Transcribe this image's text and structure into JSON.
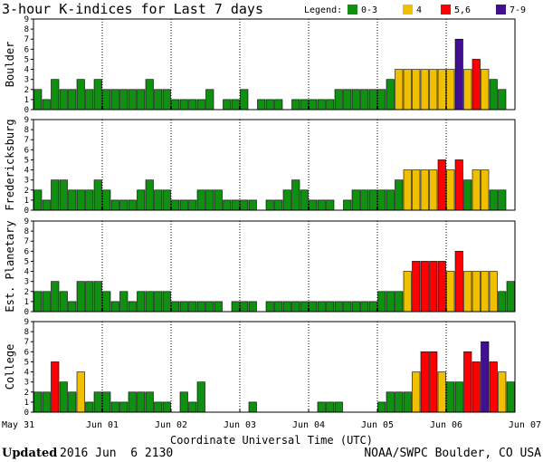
{
  "title": "3-hour K-indices for Last 7 days",
  "legend": {
    "label": "Legend:",
    "items": [
      {
        "label": "0-3",
        "color": "#109010"
      },
      {
        "label": "4",
        "color": "#f0c000"
      },
      {
        "label": "5,6",
        "color": "#ff0000"
      },
      {
        "label": "7-9",
        "color": "#401090"
      }
    ]
  },
  "footer": {
    "updated_label": "Updated",
    "updated_value": "2016 Jun  6 2130",
    "credit": "NOAA/SWPC Boulder, CO USA"
  },
  "chart_data": {
    "type": "bar",
    "xlabel": "Coordinate Universal Time (UTC)",
    "x_ticks": [
      "May 31",
      "Jun 01",
      "Jun 02",
      "Jun 03",
      "Jun 04",
      "Jun 05",
      "Jun 06",
      "Jun 07"
    ],
    "ylim": [
      0,
      9
    ],
    "y_ticks": [
      0,
      1,
      2,
      3,
      4,
      5,
      6,
      7,
      8,
      9
    ],
    "interval_hours": 3,
    "color_scale": [
      {
        "range": "0-3",
        "color": "#109010"
      },
      {
        "range": "4",
        "color": "#f0c000"
      },
      {
        "range": "5,6",
        "color": "#ff0000"
      },
      {
        "range": "7-9",
        "color": "#401090"
      }
    ],
    "series": [
      {
        "name": "Boulder",
        "values": [
          2,
          1,
          3,
          2,
          2,
          3,
          2,
          3,
          2,
          2,
          2,
          2,
          2,
          3,
          2,
          2,
          1,
          1,
          1,
          1,
          2,
          0,
          1,
          1,
          2,
          0,
          1,
          1,
          1,
          0,
          1,
          1,
          1,
          1,
          1,
          2,
          2,
          2,
          2,
          2,
          2,
          3,
          4,
          4,
          4,
          4,
          4,
          4,
          4,
          7,
          4,
          5,
          4,
          3,
          2,
          0
        ]
      },
      {
        "name": "Fredericksburg",
        "values": [
          2,
          1,
          3,
          3,
          2,
          2,
          2,
          3,
          2,
          1,
          1,
          1,
          2,
          3,
          2,
          2,
          1,
          1,
          1,
          2,
          2,
          2,
          1,
          1,
          1,
          1,
          0,
          1,
          1,
          2,
          3,
          2,
          1,
          1,
          1,
          0,
          1,
          2,
          2,
          2,
          2,
          2,
          3,
          4,
          4,
          4,
          4,
          5,
          4,
          5,
          3,
          4,
          4,
          2,
          2,
          0
        ]
      },
      {
        "name": "Est. Planetary",
        "values": [
          2,
          2,
          3,
          2,
          1,
          3,
          3,
          3,
          2,
          1,
          2,
          1,
          2,
          2,
          2,
          2,
          1,
          1,
          1,
          1,
          1,
          1,
          0,
          1,
          1,
          1,
          0,
          1,
          1,
          1,
          1,
          1,
          1,
          1,
          1,
          1,
          1,
          1,
          1,
          1,
          2,
          2,
          2,
          4,
          5,
          5,
          5,
          5,
          4,
          6,
          4,
          4,
          4,
          4,
          2,
          3
        ]
      },
      {
        "name": "College",
        "values": [
          2,
          2,
          5,
          3,
          2,
          4,
          1,
          2,
          2,
          1,
          1,
          2,
          2,
          2,
          1,
          1,
          0,
          2,
          1,
          3,
          0,
          0,
          0,
          0,
          0,
          1,
          0,
          0,
          0,
          0,
          0,
          0,
          0,
          1,
          1,
          1,
          0,
          0,
          0,
          0,
          1,
          2,
          2,
          2,
          4,
          6,
          6,
          4,
          3,
          3,
          6,
          5,
          7,
          5,
          4,
          3
        ]
      }
    ]
  }
}
